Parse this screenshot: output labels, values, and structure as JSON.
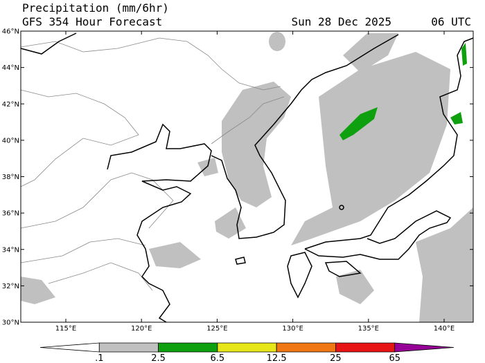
{
  "header": {
    "title": "Precipitation (mm/6hr)",
    "subtitle": "GFS 354 Hour Forecast",
    "date": "Sun 28 Dec 2025",
    "time": "06 UTC"
  },
  "map": {
    "lon_labels": [
      "115°E",
      "120°E",
      "125°E",
      "130°E",
      "135°E",
      "140°E"
    ],
    "lat_labels": [
      "46°N",
      "44°N",
      "42°N",
      "40°N",
      "38°N",
      "36°N",
      "34°N",
      "32°N",
      "30°N"
    ]
  },
  "colorbar": {
    "labels": [
      ".1",
      "2.5",
      "6.5",
      "12.5",
      "25",
      "65"
    ],
    "colors": [
      "#ffffff",
      "#c0c0c0",
      "#0fa00f",
      "#e6e619",
      "#f07814",
      "#e61414",
      "#960096"
    ]
  }
}
